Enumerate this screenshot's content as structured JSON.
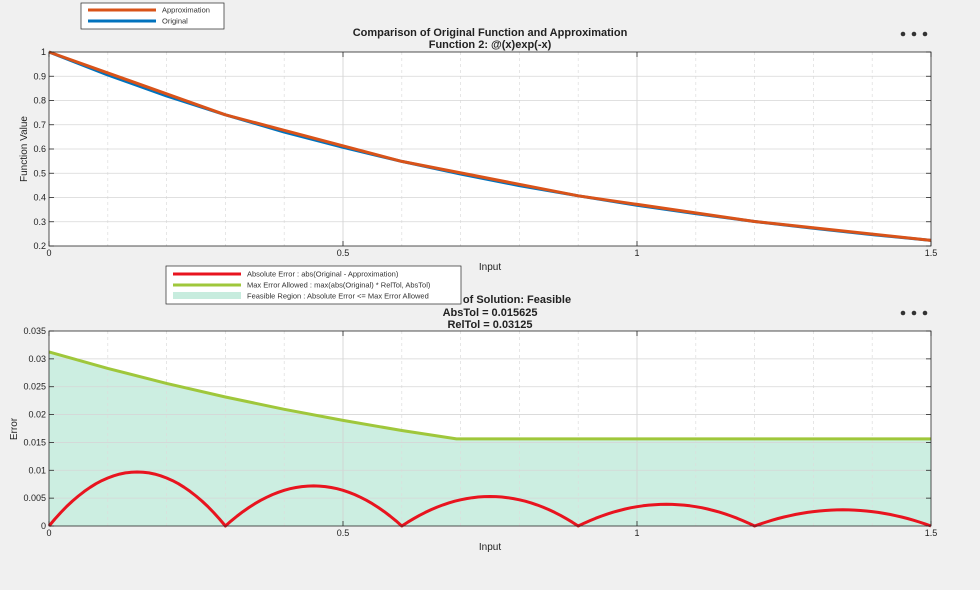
{
  "chart_data": [
    {
      "type": "line",
      "title": "Comparison of Original Function and Approximation",
      "subtitle": "Function 2: @(x)exp(-x)",
      "xlabel": "Input",
      "ylabel": "Function Value",
      "xlim": [
        0,
        1.5
      ],
      "ylim": [
        0.2,
        1
      ],
      "xticks": [
        "0",
        "0.5",
        "1",
        "1.5"
      ],
      "yticks": [
        "0.2",
        "0.3",
        "0.4",
        "0.5",
        "0.6",
        "0.7",
        "0.8",
        "0.9",
        "1"
      ],
      "grid": true,
      "legend_placement": "top-left (outside)",
      "series": [
        {
          "name": "Approximation",
          "color": "#d95319",
          "x": [
            0,
            0.3,
            0.6,
            0.9,
            1.2,
            1.5
          ],
          "y": [
            1.0,
            0.741,
            0.549,
            0.407,
            0.301,
            0.223
          ]
        },
        {
          "name": "Original",
          "color": "#0072bd",
          "x": [
            0,
            0.1,
            0.2,
            0.3,
            0.4,
            0.5,
            0.6,
            0.7,
            0.8,
            0.9,
            1.0,
            1.1,
            1.2,
            1.3,
            1.4,
            1.5
          ],
          "y": [
            1.0,
            0.905,
            0.819,
            0.741,
            0.67,
            0.607,
            0.549,
            0.497,
            0.449,
            0.407,
            0.368,
            0.333,
            0.301,
            0.273,
            0.247,
            0.223
          ]
        }
      ]
    },
    {
      "type": "line",
      "title": "of Solution: Feasible",
      "subtitle": "AbsTol = 0.015625",
      "subtitle2": "RelTol = 0.03125",
      "xlabel": "Input",
      "ylabel": "Error",
      "xlim": [
        0,
        1.5
      ],
      "ylim": [
        0,
        0.035
      ],
      "xticks": [
        "0",
        "0.5",
        "1",
        "1.5"
      ],
      "yticks": [
        "0",
        "0.005",
        "0.01",
        "0.015",
        "0.02",
        "0.025",
        "0.03",
        "0.035"
      ],
      "grid": true,
      "legend_placement": "top-left (outside)",
      "series": [
        {
          "name": "Absolute Error : abs(Original - Approximation)",
          "color": "#e8141f",
          "x": [
            0,
            0.15,
            0.3,
            0.45,
            0.6,
            0.75,
            0.9,
            1.05,
            1.2,
            1.35,
            1.5
          ],
          "y": [
            0,
            0.0097,
            0,
            0.0072,
            0,
            0.0053,
            0,
            0.0039,
            0,
            0.0029,
            0
          ]
        },
        {
          "name": "Max Error Allowed : max(abs(Original) * RelTol, AbsTol)",
          "color": "#9fc73b",
          "x": [
            0,
            0.1,
            0.2,
            0.3,
            0.4,
            0.5,
            0.6,
            0.693,
            0.8,
            1.0,
            1.2,
            1.5
          ],
          "y": [
            0.03125,
            0.02828,
            0.02559,
            0.02315,
            0.02095,
            0.01895,
            0.01715,
            0.015625,
            0.015625,
            0.015625,
            0.015625,
            0.015625
          ]
        },
        {
          "name": "Feasible Region : Absolute Error <= Max Error Allowed",
          "color": "#c7ecde",
          "kind": "area-under-max-error"
        }
      ]
    }
  ]
}
